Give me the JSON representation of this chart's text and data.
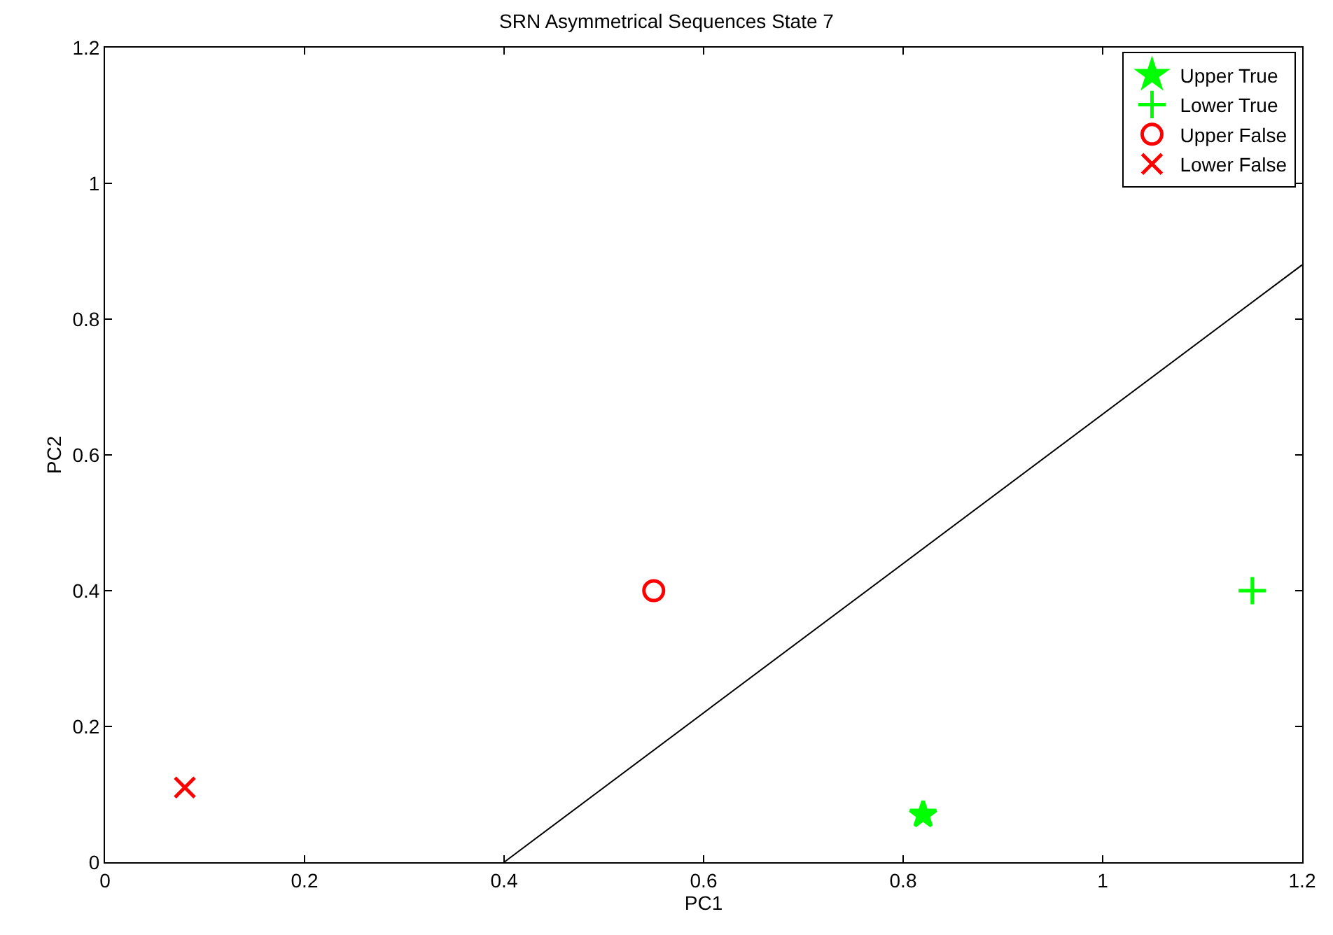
{
  "chart_data": {
    "type": "scatter",
    "title": "SRN Asymmetrical Sequences State 7",
    "xlabel": "PC1",
    "ylabel": "PC2",
    "xlim": [
      0,
      1.2
    ],
    "xticks": [
      0,
      0.2,
      0.4,
      0.6,
      0.8,
      1,
      1.2
    ],
    "ylim": [
      0,
      1.2
    ],
    "yticks": [
      0,
      0.2,
      0.4,
      0.6,
      0.8,
      1,
      1.2
    ],
    "legend": "top right",
    "series": [
      {
        "name": "Upper True",
        "color": "#00ff00",
        "marker": "star",
        "x": [
          0.82
        ],
        "values": [
          0.07
        ]
      },
      {
        "name": "Lower True",
        "color": "#00ff00",
        "marker": "cross",
        "x": [
          1.15
        ],
        "values": [
          0.4
        ]
      },
      {
        "name": "Upper False",
        "color": "#ff0000",
        "marker": "circle",
        "x": [
          0.55
        ],
        "values": [
          0.4
        ]
      },
      {
        "name": "Lower False",
        "color": "#ff0000",
        "marker": "x",
        "x": [
          0.08
        ],
        "values": [
          0.11
        ]
      },
      {
        "type": "line",
        "color": "#000000",
        "line_style": "solid",
        "marker": "none",
        "x": [
          0.4,
          1.2
        ],
        "values": [
          0,
          0.88
        ]
      }
    ]
  }
}
